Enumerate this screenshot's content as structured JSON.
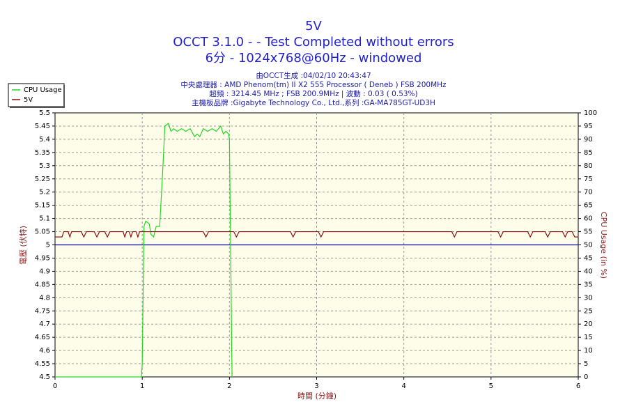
{
  "chart_data": {
    "type": "line",
    "title": "5V",
    "title_lines": [
      "OCCT 3.1.0 -  - Test Completed without errors",
      "6分 - 1024x768@60Hz - windowed"
    ],
    "subtitle_lines": [
      "由OCCT生成 :04/02/10 20:43:47",
      "中央處理器 : AMD Phenom(tm) II X2 555 Processor ( Deneb ) FSB 200MHz",
      "超頻 : 3214.45 MHz ; FSB 200.9MHz | 波動 : 0.03 ( 0.53%)",
      "主機板品牌 :Gigabyte Technology Co., Ltd.,系列 :GA-MA785GT-UD3H"
    ],
    "x_label": "時間 (分鐘)",
    "y_label": "電壓 (伏特)",
    "y2_label": "CPU Usage (in %)",
    "xlim": [
      0,
      6
    ],
    "xticks": [
      0,
      1,
      2,
      3,
      4,
      5,
      6
    ],
    "ylim": [
      4.5,
      5.5
    ],
    "yticks": [
      4.5,
      4.55,
      4.6,
      4.65,
      4.7,
      4.75,
      4.8,
      4.85,
      4.9,
      4.95,
      5,
      5.05,
      5.1,
      5.15,
      5.2,
      5.25,
      5.3,
      5.35,
      5.4,
      5.45,
      5.5
    ],
    "y2lim": [
      0,
      100
    ],
    "y2ticks": [
      0,
      5,
      10,
      15,
      20,
      25,
      30,
      35,
      40,
      45,
      50,
      55,
      60,
      65,
      70,
      75,
      80,
      85,
      90,
      95,
      100
    ],
    "grid": true,
    "reference_line": {
      "value": 5,
      "color": "#0000b4"
    },
    "series": [
      {
        "name": "CPU Usage",
        "color": "#22d822",
        "axis": "y2",
        "x": [
          0,
          0.99,
          1.0,
          1.02,
          1.04,
          1.08,
          1.1,
          1.13,
          1.16,
          1.2,
          1.23,
          1.26,
          1.3,
          1.33,
          1.36,
          1.4,
          1.45,
          1.5,
          1.55,
          1.6,
          1.63,
          1.66,
          1.7,
          1.75,
          1.8,
          1.85,
          1.9,
          1.93,
          1.96,
          1.99,
          2.0,
          2.03
        ],
        "values": [
          0,
          0,
          5,
          57,
          59,
          58,
          54,
          53,
          57,
          57,
          75,
          95,
          96,
          93,
          94,
          93,
          94,
          93,
          94,
          91,
          92,
          91,
          94,
          93,
          94,
          93,
          95,
          92,
          93,
          92,
          90,
          0
        ]
      },
      {
        "name": "5V",
        "color": "#8b1010",
        "x": [
          0,
          0.08,
          0.1,
          0.15,
          0.17,
          0.19,
          0.3,
          0.33,
          0.36,
          0.45,
          0.48,
          0.51,
          0.57,
          0.6,
          0.63,
          0.78,
          0.8,
          0.82,
          0.85,
          0.87,
          0.89,
          0.93,
          0.95,
          0.97,
          1.7,
          1.73,
          1.76,
          2.05,
          2.08,
          2.11,
          2.7,
          2.73,
          2.76,
          3.02,
          3.05,
          3.08,
          4.55,
          4.58,
          4.61,
          5.08,
          5.11,
          5.14,
          5.42,
          5.45,
          5.48,
          5.62,
          5.65,
          5.68,
          5.82,
          5.85,
          5.88,
          5.93,
          5.96,
          6
        ],
        "values": [
          5.03,
          5.03,
          5.05,
          5.05,
          5.03,
          5.05,
          5.05,
          5.03,
          5.05,
          5.05,
          5.03,
          5.05,
          5.05,
          5.03,
          5.05,
          5.05,
          5.03,
          5.05,
          5.05,
          5.03,
          5.05,
          5.05,
          5.03,
          5.05,
          5.05,
          5.03,
          5.05,
          5.05,
          5.03,
          5.05,
          5.05,
          5.03,
          5.05,
          5.05,
          5.03,
          5.05,
          5.05,
          5.03,
          5.05,
          5.05,
          5.03,
          5.05,
          5.05,
          5.03,
          5.05,
          5.05,
          5.03,
          5.05,
          5.05,
          5.03,
          5.05,
          5.05,
          5.03,
          5.03
        ]
      }
    ]
  }
}
